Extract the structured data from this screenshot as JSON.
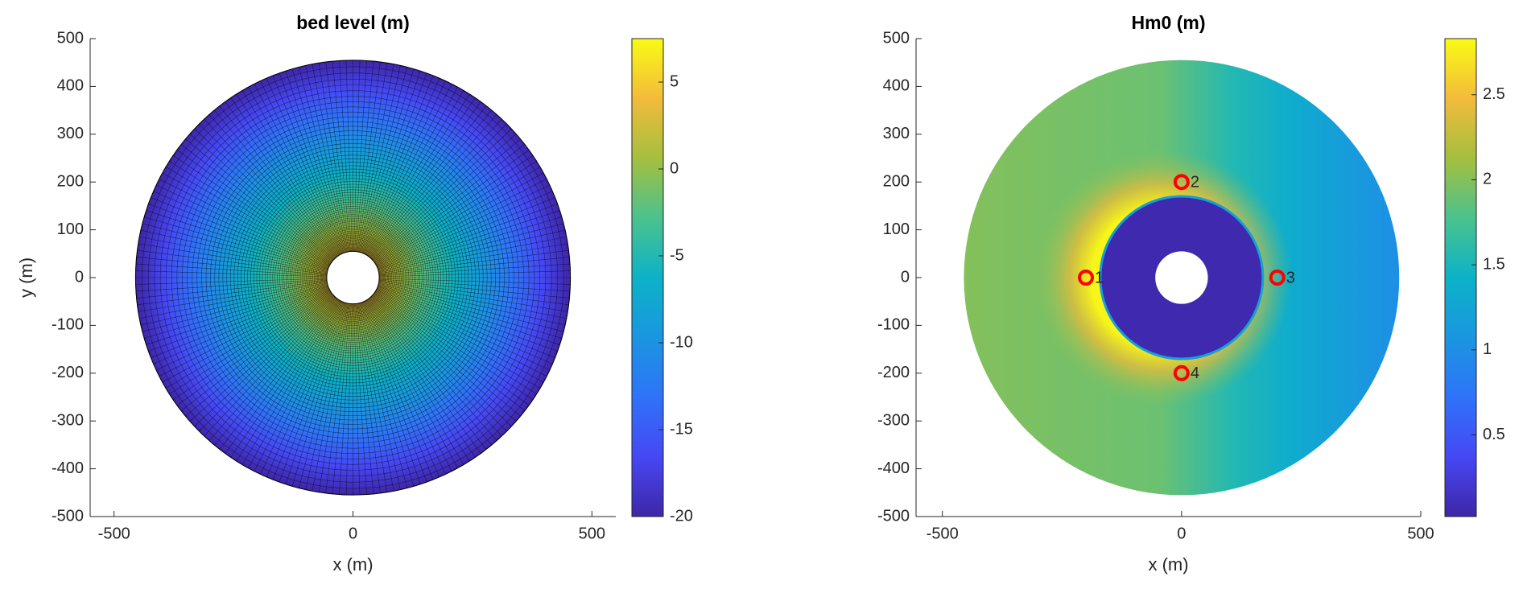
{
  "chart_data": [
    {
      "type": "mesh",
      "title": "bed level (m)",
      "xlabel": "x (m)",
      "ylabel": "y (m)",
      "xlim": [
        -550,
        550
      ],
      "ylim": [
        -500,
        500
      ],
      "xticks": [
        -500,
        0,
        500
      ],
      "yticks": [
        -500,
        -400,
        -300,
        -200,
        -100,
        0,
        100,
        200,
        300,
        400,
        500
      ],
      "colorbar": {
        "lim": [
          -20,
          7.5
        ],
        "ticks": [
          -20,
          -15,
          -10,
          -5,
          0,
          5
        ]
      }
    },
    {
      "type": "field",
      "title": "Hm0 (m)",
      "xlabel": "x (m)",
      "xlim": [
        -555,
        500
      ],
      "ylim": [
        -500,
        500
      ],
      "xticks": [
        -500,
        0,
        500
      ],
      "yticks": [
        -500,
        -400,
        -300,
        -200,
        -100,
        0,
        100,
        200,
        300,
        400,
        500
      ],
      "colorbar": {
        "lim": [
          0.02,
          2.83
        ],
        "ticks": [
          0.5,
          1,
          1.5,
          2,
          2.5
        ]
      },
      "points": {
        "x": [
          -200,
          0,
          200,
          0
        ],
        "y": [
          0,
          200,
          0,
          -200
        ],
        "labels": [
          "1",
          "2",
          "3",
          "4"
        ],
        "color": "#ff0000"
      }
    }
  ]
}
